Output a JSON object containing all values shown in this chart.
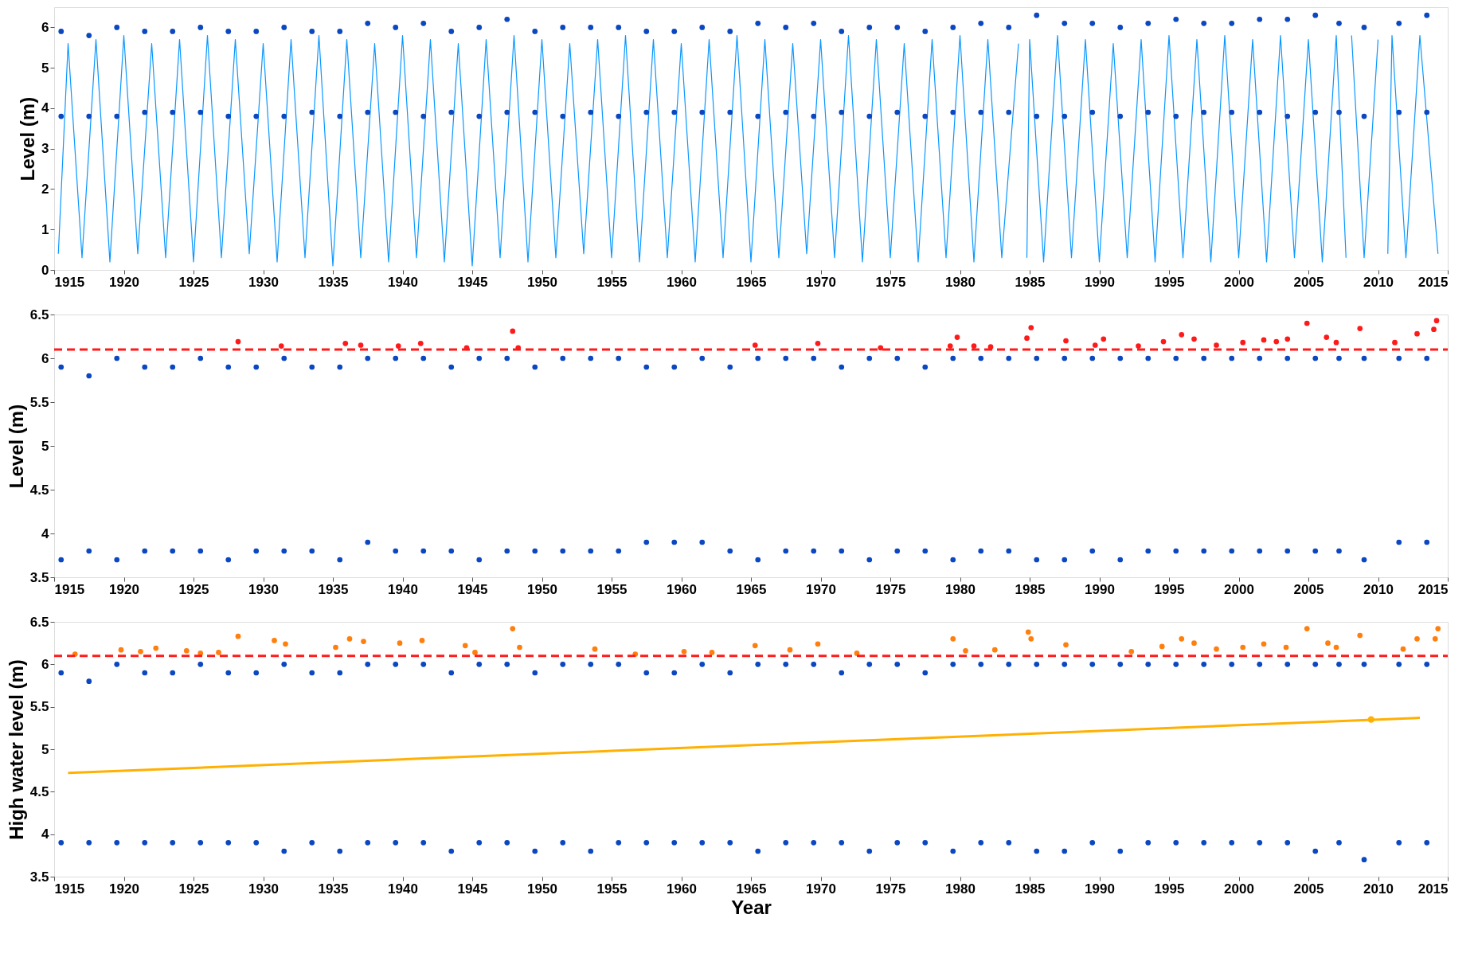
{
  "chart_data": [
    {
      "type": "line",
      "ylabel": "Level (m)",
      "xlim": [
        1915,
        2015
      ],
      "xticks": [
        1915,
        1920,
        1925,
        1930,
        1935,
        1940,
        1945,
        1950,
        1955,
        1960,
        1965,
        1970,
        1975,
        1980,
        1985,
        1990,
        1995,
        2000,
        2005,
        2010,
        2015
      ],
      "ylim": [
        0,
        6.5
      ],
      "yticks": [
        0,
        1,
        2,
        3,
        4,
        5,
        6
      ],
      "grid": false,
      "series": [
        {
          "color": "#0a97ff",
          "x": [
            1915.3,
            1916,
            1917,
            1918,
            1919,
            1920,
            1921,
            1922,
            1923,
            1924,
            1925,
            1926,
            1927,
            1928,
            1929,
            1930,
            1931,
            1932,
            1933,
            1934,
            1935,
            1936,
            1937,
            1938,
            1939,
            1940,
            1941,
            1942,
            1943,
            1944,
            1945,
            1946,
            1947,
            1948,
            1949,
            1950,
            1951,
            1952,
            1953,
            1954,
            1955,
            1956,
            1957,
            1958,
            1959,
            1960,
            1961,
            1962,
            1963,
            1964,
            1965,
            1966,
            1967,
            1968,
            1969,
            1970,
            1971,
            1972,
            1973,
            1974,
            1975,
            1976,
            1977,
            1978,
            1979,
            1980,
            1981,
            1982,
            1983,
            1984.2,
            1984.5,
            1984.8,
            1985,
            1986,
            1987,
            1988,
            1989,
            1990,
            1991,
            1992,
            1993,
            1994,
            1995,
            1996,
            1997,
            1998,
            1999,
            2000,
            2001,
            2002,
            2003,
            2004,
            2005,
            2006,
            2007,
            2007.7,
            2007.9,
            2008.1,
            2009,
            2010,
            2010.3,
            2010.7,
            2011,
            2012,
            2013,
            2014.3
          ],
          "values": [
            0.4,
            5.6,
            0.3,
            5.7,
            0.2,
            5.8,
            0.4,
            5.6,
            0.3,
            5.7,
            0.2,
            5.8,
            0.3,
            5.7,
            0.4,
            5.6,
            0.2,
            5.7,
            0.3,
            5.8,
            0.1,
            5.7,
            0.3,
            5.6,
            0.2,
            5.8,
            0.3,
            5.7,
            0.2,
            5.6,
            0.1,
            5.7,
            0.3,
            5.8,
            0.2,
            5.7,
            0.3,
            5.6,
            0.4,
            5.7,
            0.3,
            5.8,
            0.2,
            5.7,
            0.3,
            5.6,
            0.2,
            5.7,
            0.3,
            5.8,
            0.2,
            5.7,
            0.3,
            5.6,
            0.4,
            5.7,
            0.3,
            5.8,
            0.2,
            5.7,
            0.3,
            5.6,
            0.2,
            5.7,
            0.3,
            5.8,
            0.2,
            5.7,
            0.3,
            5.6,
            null,
            0.3,
            5.7,
            0.2,
            5.8,
            0.3,
            5.7,
            0.2,
            5.6,
            0.3,
            5.7,
            0.2,
            5.8,
            0.3,
            5.7,
            0.2,
            5.8,
            0.3,
            5.7,
            0.2,
            5.8,
            0.3,
            5.7,
            0.2,
            5.8,
            0.3,
            null,
            5.8,
            0.3,
            5.7,
            null,
            0.4,
            5.8,
            0.3,
            5.8,
            0.4
          ]
        },
        {
          "type": "scatter",
          "color": "#0a47c0",
          "x": [
            1915.5,
            1915.5,
            1917.5,
            1917.5,
            1919.5,
            1919.5,
            1921.5,
            1921.5,
            1923.5,
            1923.5,
            1925.5,
            1925.5,
            1927.5,
            1927.5,
            1929.5,
            1929.5,
            1931.5,
            1931.5,
            1933.5,
            1933.5,
            1935.5,
            1935.5,
            1937.5,
            1937.5,
            1939.5,
            1939.5,
            1941.5,
            1941.5,
            1943.5,
            1943.5,
            1945.5,
            1945.5,
            1947.5,
            1947.5,
            1949.5,
            1949.5,
            1951.5,
            1951.5,
            1953.5,
            1953.5,
            1955.5,
            1955.5,
            1957.5,
            1957.5,
            1959.5,
            1959.5,
            1961.5,
            1961.5,
            1963.5,
            1963.5,
            1965.5,
            1965.5,
            1967.5,
            1967.5,
            1969.5,
            1969.5,
            1971.5,
            1971.5,
            1973.5,
            1973.5,
            1975.5,
            1975.5,
            1977.5,
            1977.5,
            1979.5,
            1979.5,
            1981.5,
            1981.5,
            1983.5,
            1983.5,
            1985.5,
            1985.5,
            1987.5,
            1987.5,
            1989.5,
            1989.5,
            1991.5,
            1991.5,
            1993.5,
            1993.5,
            1995.5,
            1995.5,
            1997.5,
            1997.5,
            1999.5,
            1999.5,
            2001.5,
            2001.5,
            2003.5,
            2003.5,
            2005.5,
            2005.5,
            2007.2,
            2007.2,
            2009,
            2009,
            2011.5,
            2011.5,
            2013.5,
            2013.5
          ],
          "values": [
            5.9,
            3.8,
            5.8,
            3.8,
            6.0,
            3.8,
            5.9,
            3.9,
            5.9,
            3.9,
            6.0,
            3.9,
            5.9,
            3.8,
            5.9,
            3.8,
            6.0,
            3.8,
            5.9,
            3.9,
            5.9,
            3.8,
            6.1,
            3.9,
            6.0,
            3.9,
            6.1,
            3.8,
            5.9,
            3.9,
            6.0,
            3.8,
            6.2,
            3.9,
            5.9,
            3.9,
            6.0,
            3.8,
            6.0,
            3.9,
            6.0,
            3.8,
            5.9,
            3.9,
            5.9,
            3.9,
            6.0,
            3.9,
            5.9,
            3.9,
            6.1,
            3.8,
            6.0,
            3.9,
            6.1,
            3.8,
            5.9,
            3.9,
            6.0,
            3.8,
            6.0,
            3.9,
            5.9,
            3.8,
            6.0,
            3.9,
            6.1,
            3.9,
            6.0,
            3.9,
            6.3,
            3.8,
            6.1,
            3.8,
            6.1,
            3.9,
            6.0,
            3.8,
            6.1,
            3.9,
            6.2,
            3.8,
            6.1,
            3.9,
            6.1,
            3.9,
            6.2,
            3.9,
            6.2,
            3.8,
            6.3,
            3.9,
            6.1,
            3.9,
            6.0,
            3.8,
            6.1,
            3.9,
            6.3,
            3.9
          ]
        }
      ]
    },
    {
      "type": "scatter",
      "ylabel": "Level (m)",
      "xlim": [
        1915,
        2015
      ],
      "xticks": [
        1915,
        1920,
        1925,
        1930,
        1935,
        1940,
        1945,
        1950,
        1955,
        1960,
        1965,
        1970,
        1975,
        1980,
        1985,
        1990,
        1995,
        2000,
        2005,
        2010,
        2015
      ],
      "ylim": [
        3.5,
        6.5
      ],
      "yticks": [
        3.5,
        4,
        4.5,
        5,
        5.5,
        6,
        6.5
      ],
      "grid": false,
      "ref_lines": [
        {
          "axis": "y",
          "value": 6.1,
          "color": "#ff1a1a",
          "line_style": "dashed"
        }
      ],
      "series": [
        {
          "color": "#0a47c0",
          "x": [
            1915.5,
            1915.5,
            1917.5,
            1917.5,
            1919.5,
            1919.5,
            1921.5,
            1921.5,
            1923.5,
            1923.5,
            1925.5,
            1925.5,
            1927.5,
            1927.5,
            1929.5,
            1929.5,
            1931.5,
            1931.5,
            1933.5,
            1933.5,
            1935.5,
            1935.5,
            1937.5,
            1937.5,
            1939.5,
            1939.5,
            1941.5,
            1941.5,
            1943.5,
            1943.5,
            1945.5,
            1945.5,
            1947.5,
            1947.5,
            1949.5,
            1949.5,
            1951.5,
            1951.5,
            1953.5,
            1953.5,
            1955.5,
            1955.5,
            1957.5,
            1957.5,
            1959.5,
            1959.5,
            1961.5,
            1961.5,
            1963.5,
            1963.5,
            1965.5,
            1965.5,
            1967.5,
            1967.5,
            1969.5,
            1969.5,
            1971.5,
            1971.5,
            1973.5,
            1973.5,
            1975.5,
            1975.5,
            1977.5,
            1977.5,
            1979.5,
            1979.5,
            1981.5,
            1981.5,
            1983.5,
            1983.5,
            1985.5,
            1985.5,
            1987.5,
            1987.5,
            1989.5,
            1989.5,
            1991.5,
            1991.5,
            1993.5,
            1993.5,
            1995.5,
            1995.5,
            1997.5,
            1997.5,
            1999.5,
            1999.5,
            2001.5,
            2001.5,
            2003.5,
            2003.5,
            2005.5,
            2005.5,
            2007.2,
            2007.2,
            2009,
            2009,
            2011.5,
            2011.5,
            2013.5,
            2013.5
          ],
          "values": [
            5.9,
            3.7,
            5.8,
            3.8,
            6.0,
            3.7,
            5.9,
            3.8,
            5.9,
            3.8,
            6.0,
            3.8,
            5.9,
            3.7,
            5.9,
            3.8,
            6.0,
            3.8,
            5.9,
            3.8,
            5.9,
            3.7,
            6.0,
            3.9,
            6.0,
            3.8,
            6.0,
            3.8,
            5.9,
            3.8,
            6.0,
            3.7,
            6.0,
            3.8,
            5.9,
            3.8,
            6.0,
            3.8,
            6.0,
            3.8,
            6.0,
            3.8,
            5.9,
            3.9,
            5.9,
            3.9,
            6.0,
            3.9,
            5.9,
            3.8,
            6.0,
            3.7,
            6.0,
            3.8,
            6.0,
            3.8,
            5.9,
            3.8,
            6.0,
            3.7,
            6.0,
            3.8,
            5.9,
            3.8,
            6.0,
            3.7,
            6.0,
            3.8,
            6.0,
            3.8,
            6.0,
            3.7,
            6.0,
            3.7,
            6.0,
            3.8,
            6.0,
            3.7,
            6.0,
            3.8,
            6.0,
            3.8,
            6.0,
            3.8,
            6.0,
            3.8,
            6.0,
            3.8,
            6.0,
            3.8,
            6.0,
            3.8,
            6.0,
            3.8,
            6.0,
            3.7,
            6.0,
            3.9,
            6.0,
            3.9
          ]
        },
        {
          "color": "#ff1a1a",
          "x": [
            1928.2,
            1931.3,
            1935.9,
            1937,
            1939.7,
            1941.3,
            1944.6,
            1947.9,
            1948.3,
            1965.3,
            1969.8,
            1974.3,
            1979.3,
            1979.8,
            1981,
            1982.2,
            1984.8,
            1985.1,
            1987.6,
            1989.7,
            1990.3,
            1992.8,
            1994.6,
            1995.9,
            1996.8,
            1998.4,
            2000.3,
            2001.8,
            2002.7,
            2003.5,
            2004.9,
            2006.3,
            2007,
            2008.7,
            2011.2,
            2012.8,
            2014.2,
            2014
          ],
          "values": [
            6.19,
            6.14,
            6.17,
            6.15,
            6.14,
            6.17,
            6.12,
            6.31,
            6.12,
            6.15,
            6.17,
            6.12,
            6.14,
            6.24,
            6.14,
            6.13,
            6.23,
            6.35,
            6.2,
            6.15,
            6.22,
            6.14,
            6.19,
            6.27,
            6.22,
            6.15,
            6.18,
            6.21,
            6.19,
            6.22,
            6.4,
            6.24,
            6.18,
            6.34,
            6.18,
            6.28,
            6.43,
            6.33
          ]
        }
      ]
    },
    {
      "type": "scatter",
      "xlabel": "Year",
      "ylabel": "High water level (m)",
      "xlim": [
        1915,
        2015
      ],
      "xticks": [
        1915,
        1920,
        1925,
        1930,
        1935,
        1940,
        1945,
        1950,
        1955,
        1960,
        1965,
        1970,
        1975,
        1980,
        1985,
        1990,
        1995,
        2000,
        2005,
        2010,
        2015
      ],
      "ylim": [
        3.5,
        6.5
      ],
      "yticks": [
        3.5,
        4,
        4.5,
        5,
        5.5,
        6,
        6.5
      ],
      "grid": false,
      "ref_lines": [
        {
          "axis": "y",
          "value": 6.1,
          "color": "#ff1a1a",
          "line_style": "dashed"
        }
      ],
      "series": [
        {
          "color": "#0a47c0",
          "x": [
            1915.5,
            1915.5,
            1917.5,
            1917.5,
            1919.5,
            1919.5,
            1921.5,
            1921.5,
            1923.5,
            1923.5,
            1925.5,
            1925.5,
            1927.5,
            1927.5,
            1929.5,
            1929.5,
            1931.5,
            1931.5,
            1933.5,
            1933.5,
            1935.5,
            1935.5,
            1937.5,
            1937.5,
            1939.5,
            1939.5,
            1941.5,
            1941.5,
            1943.5,
            1943.5,
            1945.5,
            1945.5,
            1947.5,
            1947.5,
            1949.5,
            1949.5,
            1951.5,
            1951.5,
            1953.5,
            1953.5,
            1955.5,
            1955.5,
            1957.5,
            1957.5,
            1959.5,
            1959.5,
            1961.5,
            1961.5,
            1963.5,
            1963.5,
            1965.5,
            1965.5,
            1967.5,
            1967.5,
            1969.5,
            1969.5,
            1971.5,
            1971.5,
            1973.5,
            1973.5,
            1975.5,
            1975.5,
            1977.5,
            1977.5,
            1979.5,
            1979.5,
            1981.5,
            1981.5,
            1983.5,
            1983.5,
            1985.5,
            1985.5,
            1987.5,
            1987.5,
            1989.5,
            1989.5,
            1991.5,
            1991.5,
            1993.5,
            1993.5,
            1995.5,
            1995.5,
            1997.5,
            1997.5,
            1999.5,
            1999.5,
            2001.5,
            2001.5,
            2003.5,
            2003.5,
            2005.5,
            2005.5,
            2007.2,
            2007.2,
            2009,
            2009,
            2011.5,
            2011.5,
            2013.5,
            2013.5
          ],
          "values": [
            5.9,
            3.9,
            5.8,
            3.9,
            6.0,
            3.9,
            5.9,
            3.9,
            5.9,
            3.9,
            6.0,
            3.9,
            5.9,
            3.9,
            5.9,
            3.9,
            6.0,
            3.8,
            5.9,
            3.9,
            5.9,
            3.8,
            6.0,
            3.9,
            6.0,
            3.9,
            6.0,
            3.9,
            5.9,
            3.8,
            6.0,
            3.9,
            6.0,
            3.9,
            5.9,
            3.8,
            6.0,
            3.9,
            6.0,
            3.8,
            6.0,
            3.9,
            5.9,
            3.9,
            5.9,
            3.9,
            6.0,
            3.9,
            5.9,
            3.9,
            6.0,
            3.8,
            6.0,
            3.9,
            6.0,
            3.9,
            5.9,
            3.9,
            6.0,
            3.8,
            6.0,
            3.9,
            5.9,
            3.9,
            6.0,
            3.8,
            6.0,
            3.9,
            6.0,
            3.9,
            6.0,
            3.8,
            6.0,
            3.8,
            6.0,
            3.9,
            6.0,
            3.8,
            6.0,
            3.9,
            6.0,
            3.9,
            6.0,
            3.9,
            6.0,
            3.9,
            6.0,
            3.9,
            6.0,
            3.9,
            6.0,
            3.8,
            6.0,
            3.9,
            6.0,
            3.7,
            6.0,
            3.9,
            6.0,
            3.9
          ]
        },
        {
          "color": "#ff7f0e",
          "x": [
            1916.5,
            1919.8,
            1921.2,
            1922.3,
            1924.5,
            1925.5,
            1926.8,
            1928.2,
            1930.8,
            1931.6,
            1935.2,
            1936.2,
            1937.2,
            1939.8,
            1941.4,
            1944.5,
            1945.2,
            1947.9,
            1948.4,
            1953.8,
            1956.7,
            1960.2,
            1962.2,
            1965.3,
            1967.8,
            1969.8,
            1972.6,
            1979.5,
            1980.4,
            1982.5,
            1984.9,
            1985.1,
            1987.6,
            1992.3,
            1994.5,
            1995.9,
            1996.8,
            1998.4,
            2000.3,
            2001.8,
            2003.4,
            2004.9,
            2006.4,
            2007,
            2008.7,
            2011.8,
            2012.8,
            2014.3,
            2014.1
          ],
          "values": [
            6.12,
            6.17,
            6.15,
            6.19,
            6.16,
            6.13,
            6.14,
            6.33,
            6.28,
            6.24,
            6.2,
            6.3,
            6.27,
            6.25,
            6.28,
            6.22,
            6.14,
            6.42,
            6.2,
            6.18,
            6.12,
            6.15,
            6.14,
            6.22,
            6.17,
            6.24,
            6.13,
            6.3,
            6.16,
            6.17,
            6.38,
            6.3,
            6.23,
            6.15,
            6.21,
            6.3,
            6.25,
            6.18,
            6.2,
            6.24,
            6.2,
            6.42,
            6.25,
            6.2,
            6.34,
            6.18,
            6.3,
            6.42,
            6.3
          ]
        },
        {
          "type": "line",
          "color": "#ffb000",
          "x": [
            1916,
            2013
          ],
          "values": [
            4.72,
            5.37
          ]
        },
        {
          "type": "scatter",
          "color": "#ffb000",
          "x": [
            2009.5
          ],
          "values": [
            5.35
          ]
        }
      ]
    }
  ]
}
